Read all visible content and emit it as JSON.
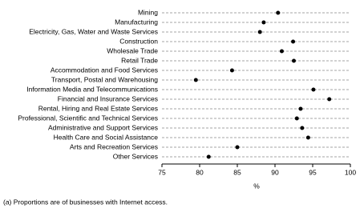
{
  "chart_data": {
    "type": "dot",
    "categories": [
      "Mining",
      "Manufacturing",
      "Electricity, Gas, Water and Waste Services",
      "Construction",
      "Wholesale Trade",
      "Retail Trade",
      "Accommodation and Food Services",
      "Transport, Postal and Warehousing",
      "Information Media and Telecommunications",
      "Financial and Insurance Services",
      "Rental, Hiring and Real Estate Services",
      "Professional, Scientific and Technical Services",
      "Administrative and Support Services",
      "Health Care and Social Assistance",
      "Arts and Recreation Services",
      "Other Services"
    ],
    "values": [
      90.4,
      88.5,
      88.0,
      92.4,
      90.9,
      92.5,
      84.3,
      79.5,
      95.1,
      97.2,
      93.4,
      92.9,
      93.6,
      94.4,
      85.0,
      81.2
    ],
    "color": "#000000",
    "xlim": [
      75,
      100
    ],
    "xticks": [
      75,
      80,
      85,
      90,
      95,
      100
    ],
    "xlabel": "%",
    "footnote": "(a) Proportions are of businesses with Internet access."
  }
}
